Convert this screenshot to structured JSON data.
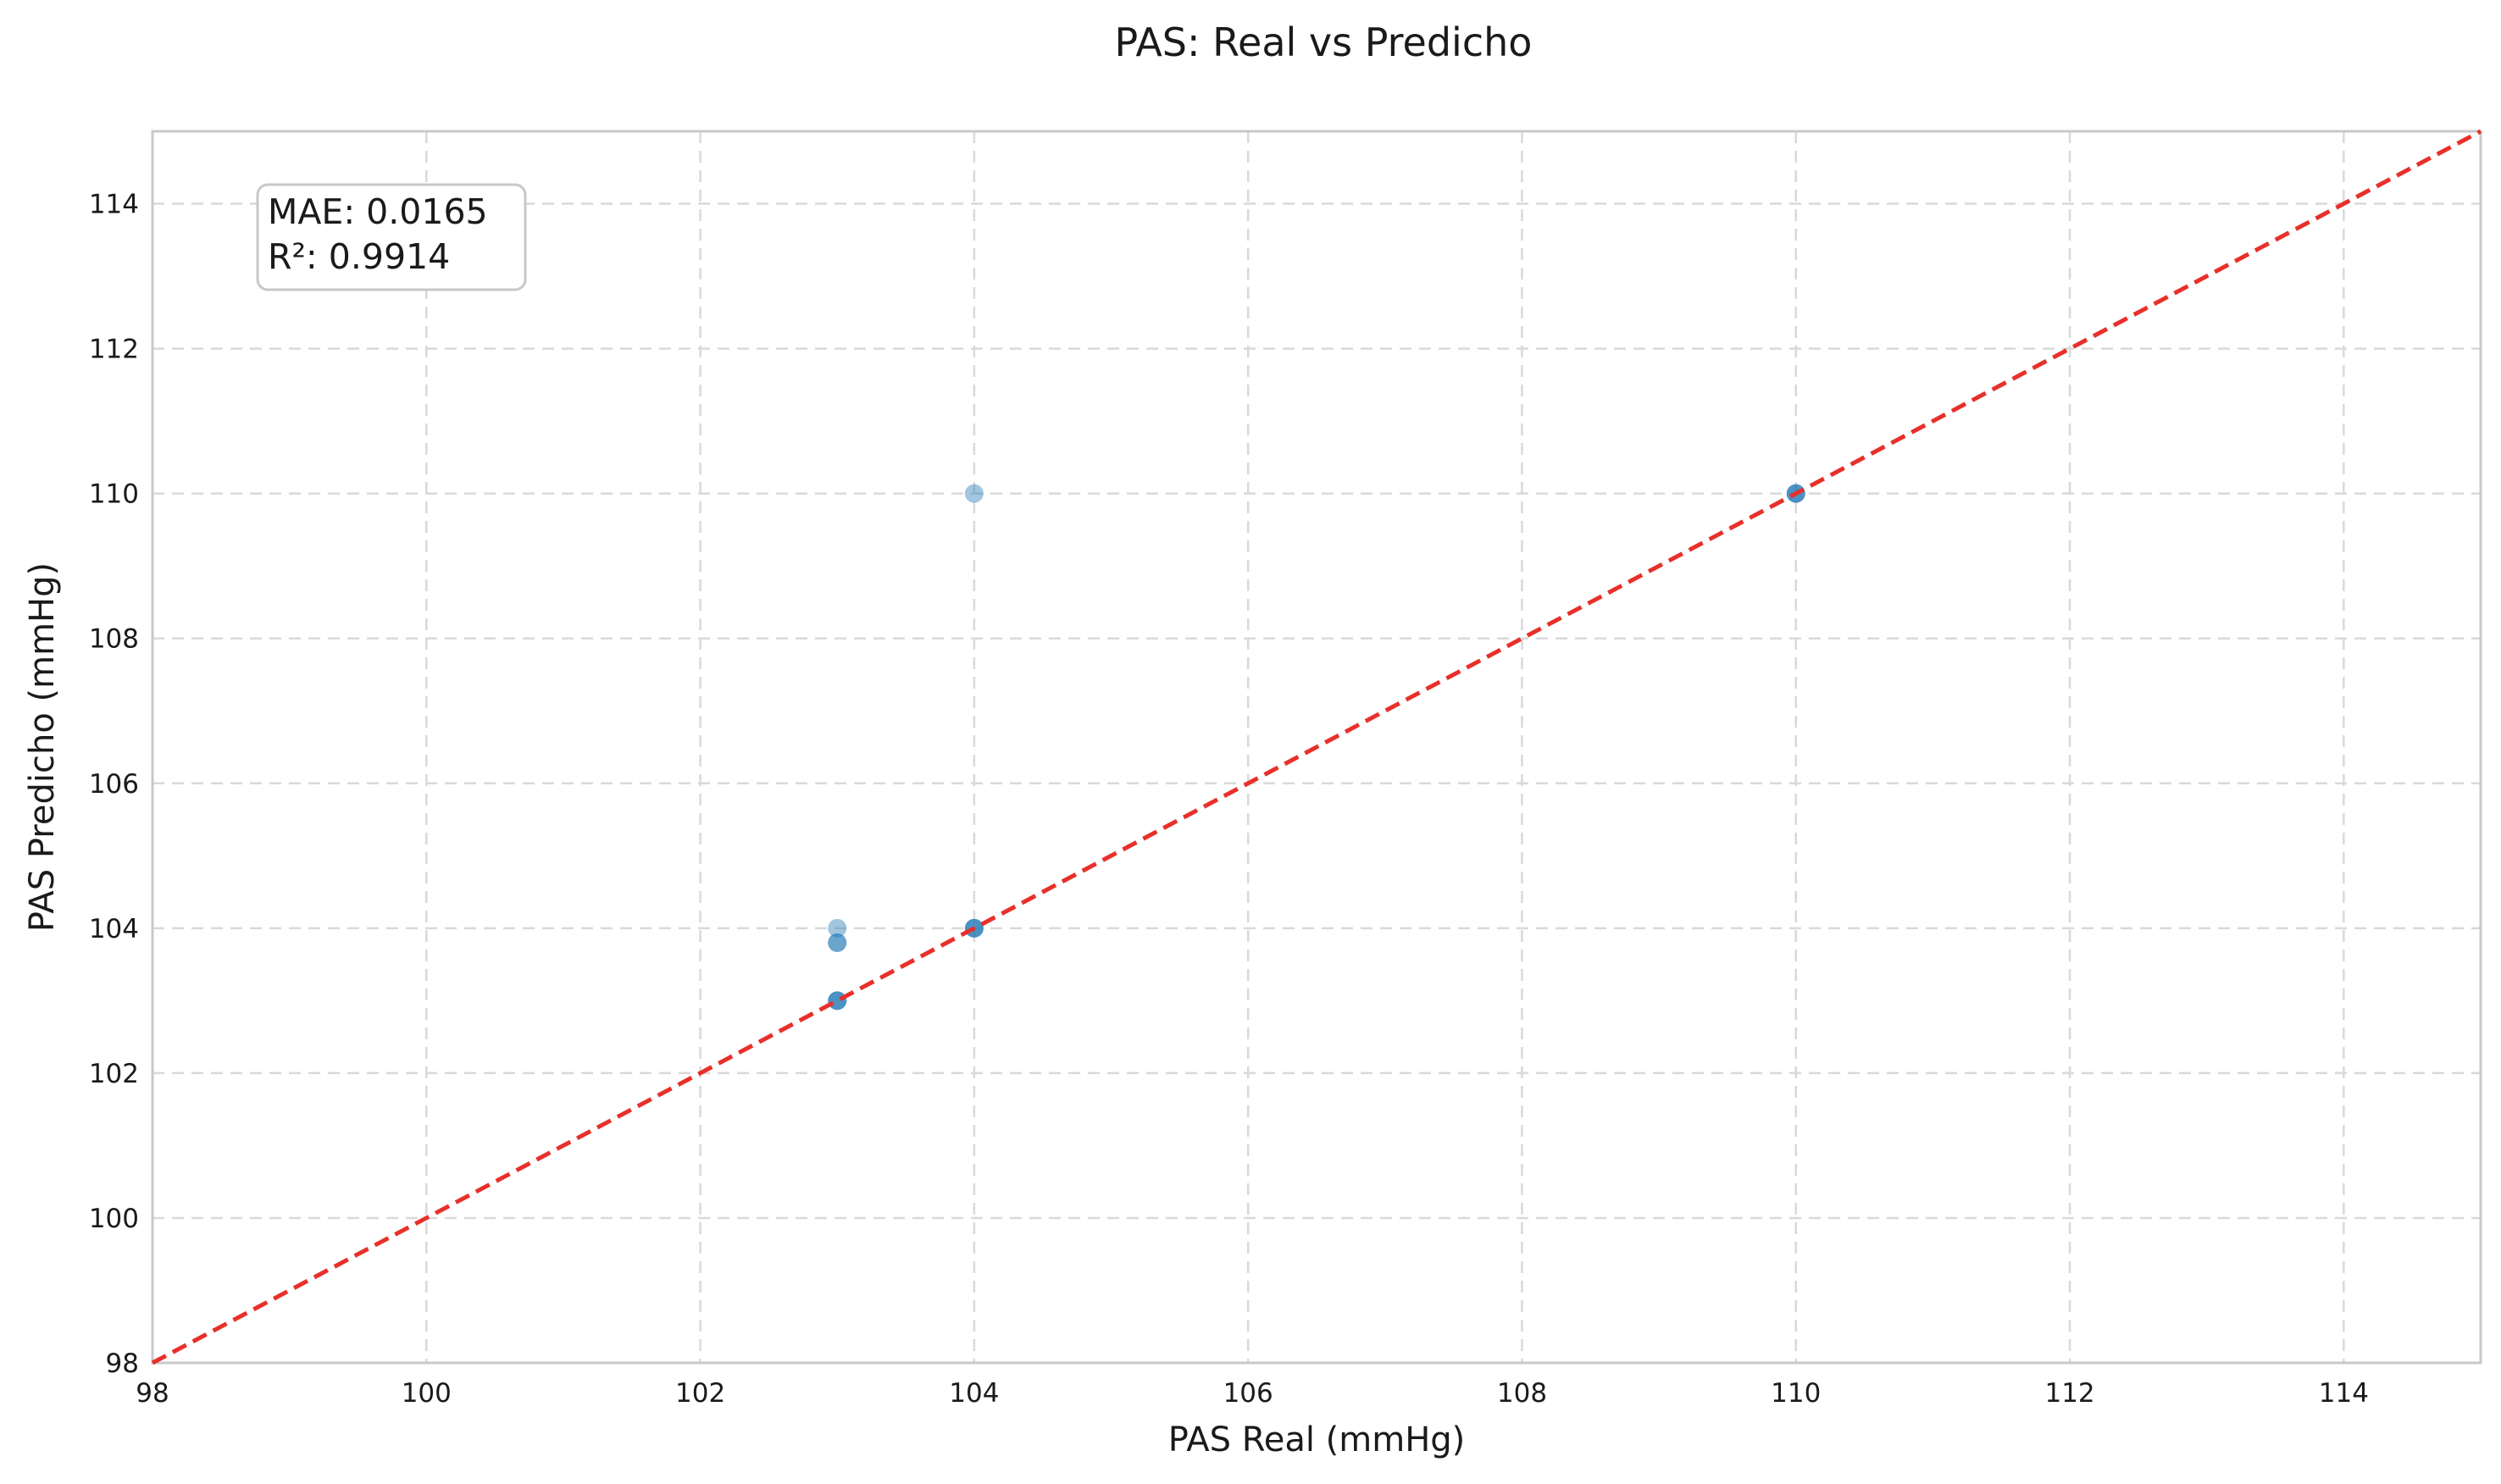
{
  "chart_data": {
    "type": "scatter",
    "title": "PAS: Real vs Predicho",
    "xlabel": "PAS Real (mmHg)",
    "ylabel": "PAS Predicho (mmHg)",
    "xlim": [
      98,
      115
    ],
    "ylim": [
      98,
      115
    ],
    "xticks": [
      "98",
      "100",
      "102",
      "104",
      "106",
      "108",
      "110",
      "112",
      "114"
    ],
    "yticks": [
      "98",
      "100",
      "102",
      "104",
      "106",
      "108",
      "110",
      "112",
      "114"
    ],
    "grid": true,
    "point_color": "#1f77b4",
    "reference_line": {
      "from": [
        98,
        98
      ],
      "to": [
        115,
        115
      ],
      "color": "#e8302b",
      "style": "dashed"
    },
    "points": [
      {
        "x": 104,
        "y": 110
      },
      {
        "x": 103,
        "y": 104
      },
      {
        "x": 103,
        "y": 103.8
      },
      {
        "x": 103,
        "y": 103.8
      },
      {
        "x": 103,
        "y": 103
      },
      {
        "x": 103,
        "y": 103
      },
      {
        "x": 103,
        "y": 103
      },
      {
        "x": 104,
        "y": 104
      },
      {
        "x": 104,
        "y": 104
      },
      {
        "x": 104,
        "y": 104
      },
      {
        "x": 110,
        "y": 110
      },
      {
        "x": 110,
        "y": 110
      },
      {
        "x": 110,
        "y": 110
      }
    ],
    "annotation": {
      "lines": [
        "MAE: 0.0165",
        "R²: 0.9914"
      ]
    }
  }
}
